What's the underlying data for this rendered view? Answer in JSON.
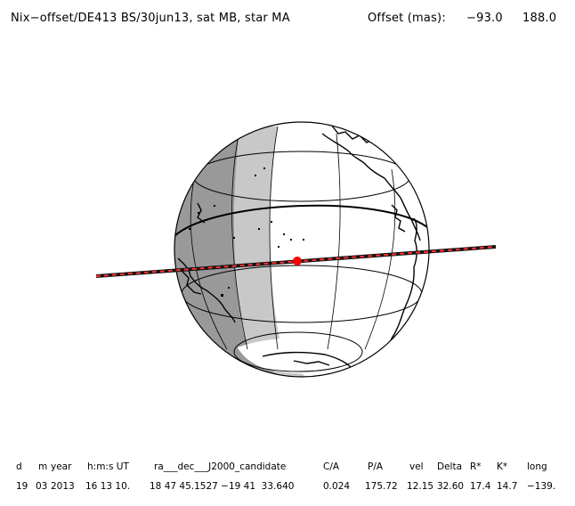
{
  "header": {
    "title": "Nix−offset/DE413 BS/30jun13, sat MB, star MA",
    "offset_label": "Offset (mas):",
    "offset_x": "−93.0",
    "offset_y": "188.0"
  },
  "table": {
    "headers": [
      "d",
      "m",
      "year",
      "h:m:s UT",
      "ra___dec___J2000_candidate",
      "C/A",
      "P/A",
      "vel",
      "Delta",
      "R*",
      "K*",
      "long"
    ],
    "values": [
      "19",
      "03",
      "2013",
      "16 13 10.",
      "18 47 45.1527 −19 41  33.640",
      "0.024",
      "175.72",
      "12.15",
      "32.60",
      "17.4",
      "14.7",
      "−139."
    ]
  },
  "colors": {
    "night": "#999999",
    "twilight": "#c8c8c8",
    "day": "#ffffff",
    "track": "#111111",
    "track_dash": "#ff3030",
    "center_dot": "#ff0000",
    "coast": "#000000"
  }
}
